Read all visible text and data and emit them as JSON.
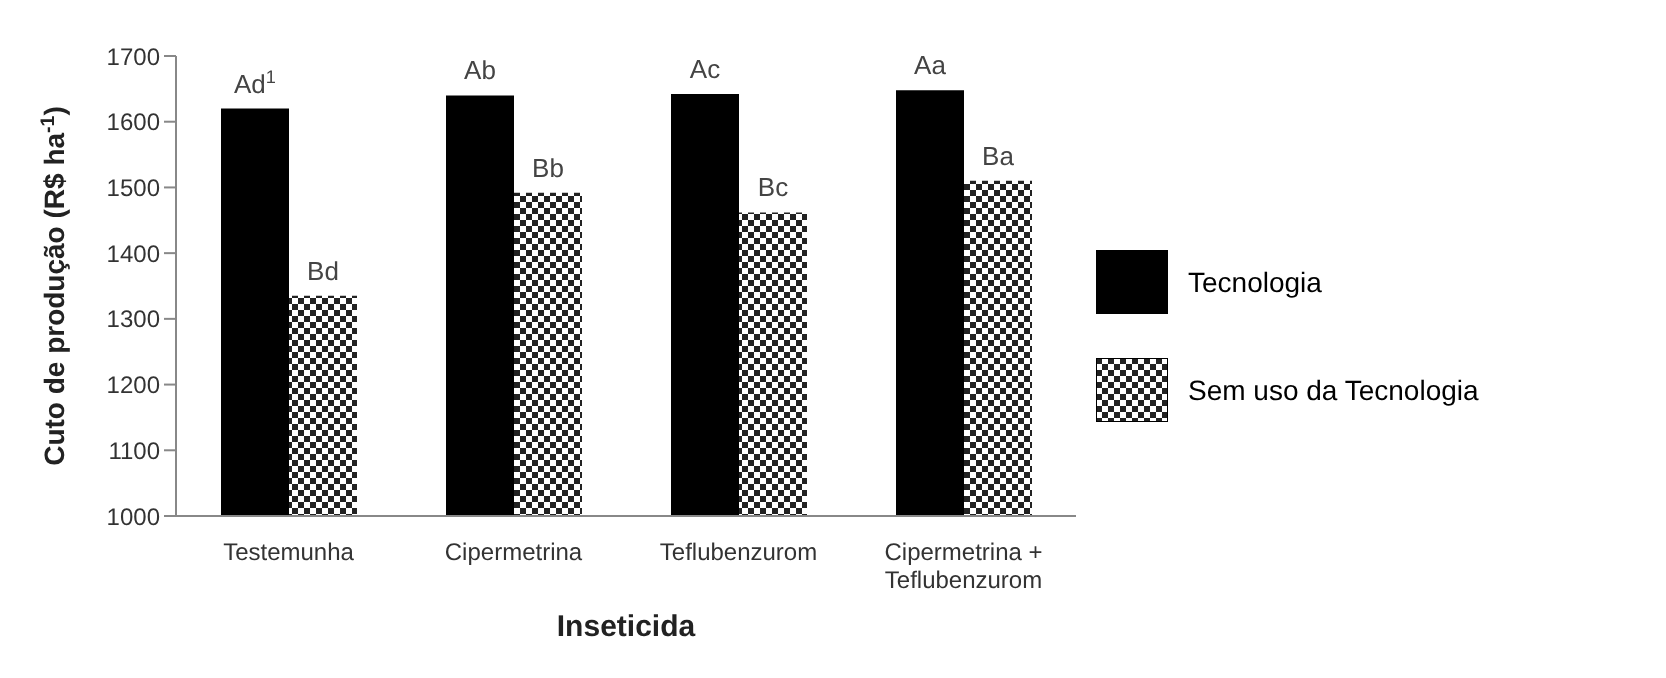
{
  "chart_data": {
    "type": "bar",
    "xlabel": "Inseticida",
    "ylabel": "Cuto de produção (R$ ha$^{-1}$)",
    "categories": [
      "Testemunha",
      "Cipermetrina",
      "Teflubenzurom",
      "Cipermetrina + Teflubenzurom"
    ],
    "series": [
      {
        "name": "Tecnologia",
        "color": "#000000",
        "values": [
          1620,
          1640,
          1642,
          1648
        ]
      },
      {
        "name": "Sem uso da Tecnologia",
        "color": "#222222",
        "values": [
          1335,
          1492,
          1462,
          1510
        ]
      }
    ],
    "annotations": [
      {
        "text": "Ad$^{1}$",
        "x": "Testemunha",
        "y": 1620
      },
      {
        "text": "Ab",
        "x": "Cipermetrina",
        "y": 1640
      },
      {
        "text": "Ac",
        "x": "Teflubenzurom",
        "y": 1642
      },
      {
        "text": "Aa",
        "x": "Cipermetrina + Teflubenzurom",
        "y": 1648
      },
      {
        "text": "Bd",
        "x": "Testemunha",
        "y": 1335
      },
      {
        "text": "Bb",
        "x": "Cipermetrina",
        "y": 1492
      },
      {
        "text": "Bc",
        "x": "Teflubenzurom",
        "y": 1462
      },
      {
        "text": "Ba",
        "x": "Cipermetrina + Teflubenzurom",
        "y": 1510
      }
    ],
    "ylim": [
      1000,
      1700
    ],
    "yticks": [
      1000,
      1100,
      1200,
      1300,
      1400,
      1500,
      1600,
      1700
    ],
    "legend": "right"
  }
}
